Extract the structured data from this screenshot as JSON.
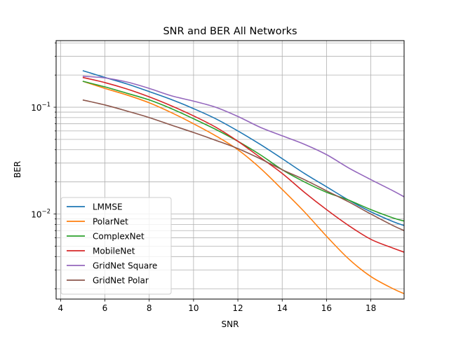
{
  "chart_data": {
    "type": "line",
    "title": "SNR and BER All Networks",
    "xlabel": "SNR",
    "ylabel": "BER",
    "xlim": [
      3.8,
      19.5
    ],
    "ylim": [
      0.0016,
      0.42
    ],
    "yscale": "log",
    "grid": true,
    "legend_location": "lower-left",
    "x_ticks": [
      4,
      6,
      8,
      10,
      12,
      14,
      16,
      18
    ],
    "x_tick_labels": [
      "4",
      "6",
      "8",
      "10",
      "12",
      "14",
      "16",
      "18"
    ],
    "y_major_ticks": [
      {
        "value": 0.01,
        "label": "10",
        "exp": "−2"
      },
      {
        "value": 0.1,
        "label": "10",
        "exp": "−1"
      }
    ],
    "x": [
      5,
      6,
      7,
      8,
      9,
      10,
      11,
      12,
      13,
      14,
      15,
      16,
      17,
      18,
      19,
      19.5
    ],
    "series": [
      {
        "name": "LMMSE",
        "color": "#1f77b4",
        "values": [
          0.22,
          0.19,
          0.165,
          0.14,
          0.118,
          0.097,
          0.078,
          0.06,
          0.045,
          0.033,
          0.024,
          0.018,
          0.0135,
          0.0105,
          0.0085,
          0.0078
        ]
      },
      {
        "name": "PolarNet",
        "color": "#ff7f0e",
        "values": [
          0.175,
          0.15,
          0.13,
          0.11,
          0.089,
          0.07,
          0.054,
          0.04,
          0.027,
          0.017,
          0.0105,
          0.0062,
          0.0038,
          0.0026,
          0.002,
          0.0018
        ]
      },
      {
        "name": "ComplexNet",
        "color": "#2ca02c",
        "values": [
          0.175,
          0.155,
          0.135,
          0.117,
          0.097,
          0.078,
          0.062,
          0.048,
          0.036,
          0.026,
          0.02,
          0.016,
          0.0135,
          0.011,
          0.0092,
          0.0086
        ]
      },
      {
        "name": "MobileNet",
        "color": "#d62728",
        "values": [
          0.19,
          0.17,
          0.148,
          0.125,
          0.103,
          0.083,
          0.065,
          0.048,
          0.034,
          0.024,
          0.016,
          0.011,
          0.0078,
          0.0058,
          0.0048,
          0.0044
        ]
      },
      {
        "name": "GridNet Square",
        "color": "#9467bd",
        "values": [
          0.195,
          0.188,
          0.172,
          0.15,
          0.128,
          0.114,
          0.1,
          0.082,
          0.065,
          0.054,
          0.045,
          0.036,
          0.027,
          0.021,
          0.0165,
          0.0145
        ]
      },
      {
        "name": "GridNet Polar",
        "color": "#8c564b",
        "values": [
          0.117,
          0.105,
          0.092,
          0.08,
          0.068,
          0.058,
          0.049,
          0.041,
          0.033,
          0.026,
          0.021,
          0.0165,
          0.013,
          0.01,
          0.0078,
          0.007
        ]
      }
    ]
  }
}
